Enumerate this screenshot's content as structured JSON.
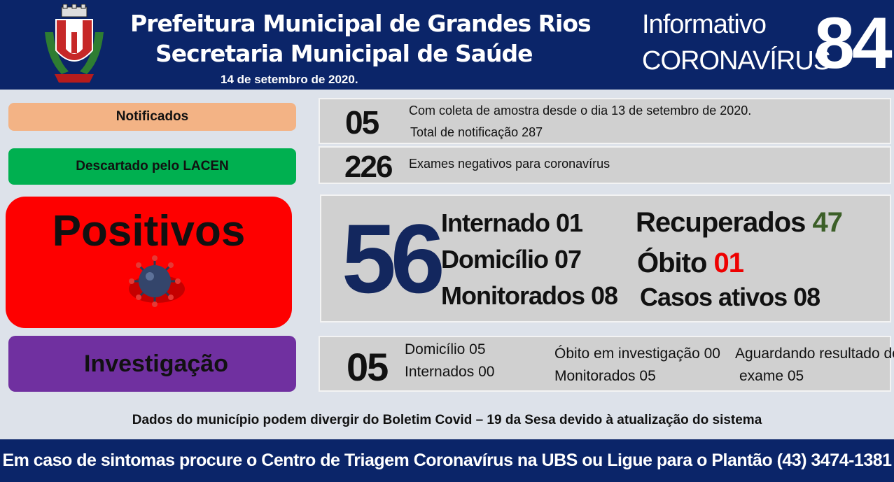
{
  "header": {
    "title_line1": "Prefeitura Municipal de Grandes Rios",
    "title_line2": "Secretaria Municipal de Saúde",
    "date": "14 de setembro  de 2020.",
    "info_label": "Informativo",
    "corona_label": "CORONAVÍRUS",
    "bulletin_number": "84"
  },
  "notificados": {
    "label": "Notificados",
    "value": "05",
    "line1": "Com coleta de amostra desde o dia 13 de setembro de 2020.",
    "line2": "Total de notificação  287",
    "color": "#f3b385"
  },
  "descartados": {
    "label": "Descartado  pelo LACEN",
    "value": "226",
    "text": "Exames negativos  para coronavírus",
    "color": "#00b050"
  },
  "positivos": {
    "label": "Positivos",
    "value": "56",
    "internado": "Internado 01",
    "domicilio": "Domicílio 07",
    "monitorados": "Monitorados 08",
    "recuperados_label": "Recuperados",
    "recuperados_value": "47",
    "obito_label": "Óbito",
    "obito_value": "01",
    "casos_ativos": "Casos ativos 08",
    "color": "#fe0000",
    "icon": "virus-icon"
  },
  "investigacao": {
    "label": "Investigação",
    "value": "05",
    "domicilio": "Domicílio 05",
    "internados": "Internados 00",
    "obito": "Óbito  em investigação  00",
    "monitorados": "Monitorados 05",
    "aguardando_line1": "Aguardando resultado de",
    "aguardando_line2": "exame 05",
    "color": "#7030a0"
  },
  "note": "Dados do município  podem  divergir do Boletim  Covid – 19 da Sesa devido à atualização  do sistema",
  "footer": "Em caso de sintomas  procure  o Centro de Triagem  Coronavírus  na UBS ou Ligue para o Plantão  (43) 3474-1381"
}
